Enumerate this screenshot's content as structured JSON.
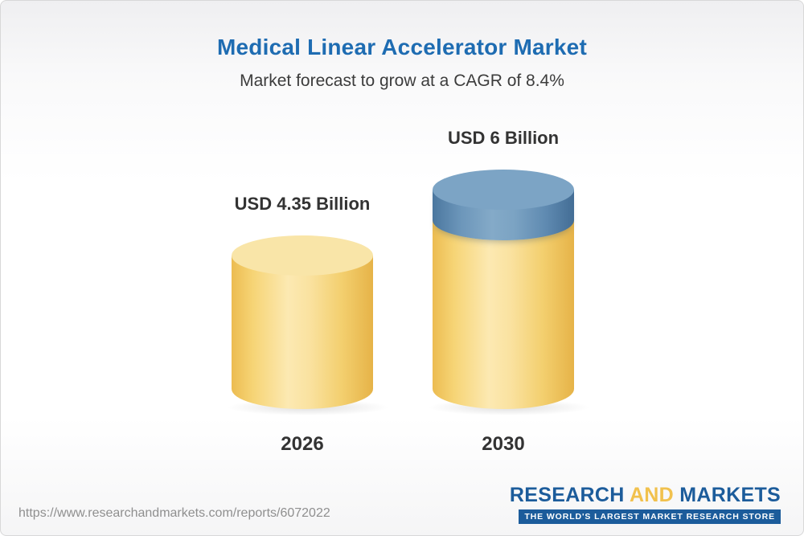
{
  "header": {
    "title": "Medical Linear Accelerator Market",
    "subtitle": "Market forecast to grow at a CAGR of 8.4%"
  },
  "chart_data": {
    "type": "bar",
    "categories": [
      "2026",
      "2030"
    ],
    "values": [
      4.35,
      6.0
    ],
    "series": [
      {
        "name": "base-gold-segment",
        "values": [
          4.35,
          4.35
        ],
        "color": "#F6CE63"
      },
      {
        "name": "growth-blue-segment",
        "values": [
          0,
          1.65
        ],
        "color": "#5C88AE"
      }
    ],
    "value_labels": [
      "USD 4.35 Billion",
      "USD 6 Billion"
    ],
    "title": "Medical Linear Accelerator Market",
    "subtitle": "Market forecast to grow at a CAGR of 8.4%",
    "xlabel": "",
    "ylabel": "",
    "unit": "USD Billion",
    "cagr_pct": 8.4,
    "ylim": [
      0,
      6
    ],
    "grid": false,
    "legend": "none"
  },
  "bars": [
    {
      "year": "2026",
      "label": "USD 4.35 Billion",
      "value": 4.35
    },
    {
      "year": "2030",
      "label": "USD 6 Billion",
      "value": 6.0
    }
  ],
  "footer": {
    "url": "https://www.researchandmarkets.com/reports/6072022",
    "logo": {
      "word1": "RESEARCH",
      "word2": "AND",
      "word3": "MARKETS",
      "tagline": "THE WORLD'S LARGEST MARKET RESEARCH STORE"
    }
  },
  "colors": {
    "title_blue": "#1E6CB2",
    "text_dark": "#333333",
    "gold": "#F6CE63",
    "blue": "#5C88AE",
    "url_gray": "#8F8F8F",
    "logo_blue": "#1C5C9B",
    "logo_gold": "#F1C14D"
  }
}
